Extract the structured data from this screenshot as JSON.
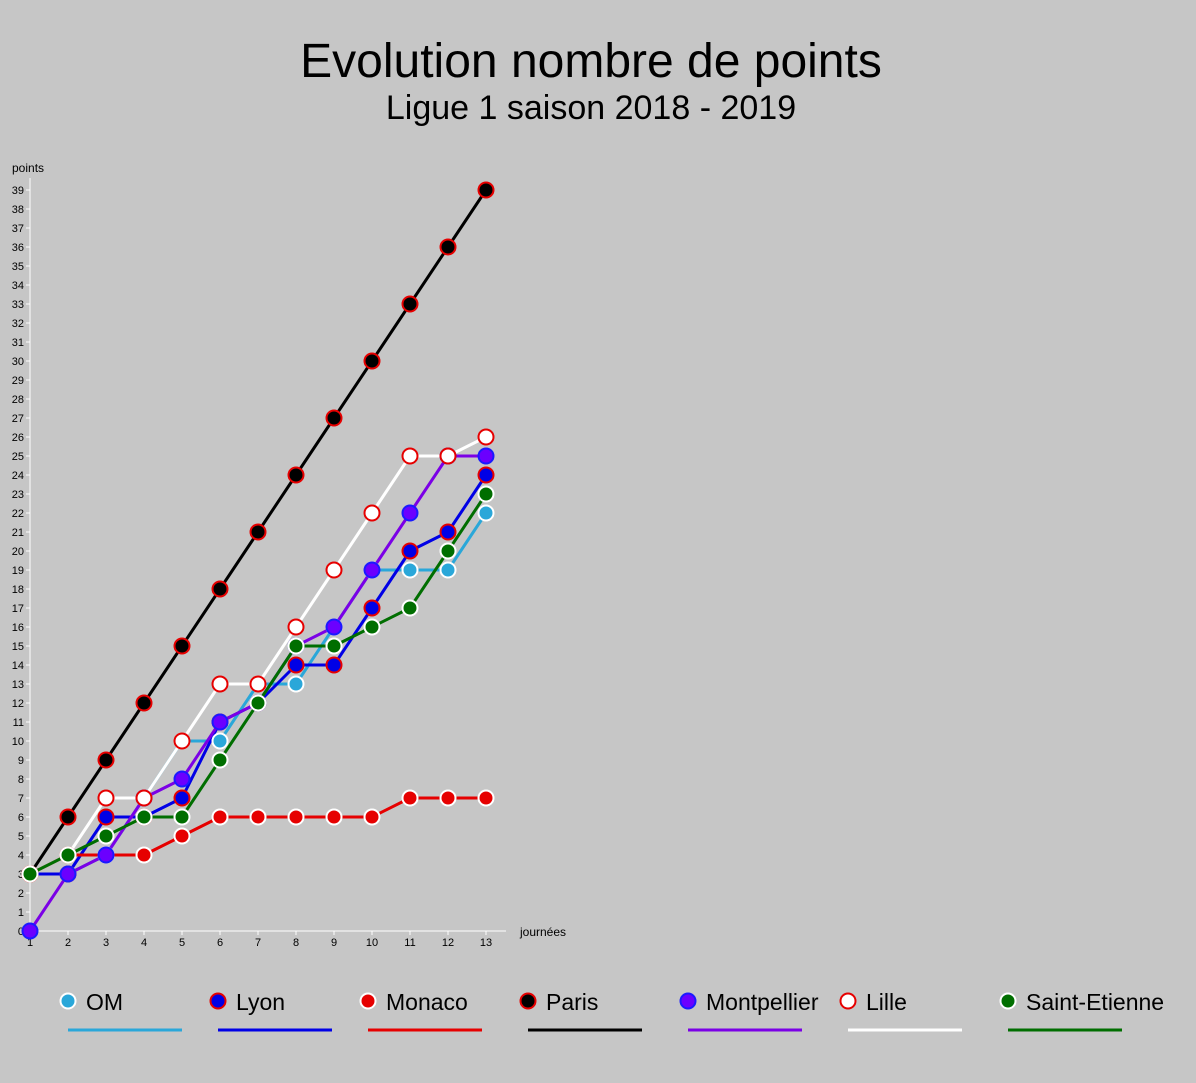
{
  "chart_data": {
    "type": "line",
    "title": "Evolution nombre de points",
    "subtitle": "Ligue 1 saison 2018 - 2019",
    "xlabel": "journées",
    "ylabel": "points",
    "x": [
      1,
      2,
      3,
      4,
      5,
      6,
      7,
      8,
      9,
      10,
      11,
      12,
      13
    ],
    "xlim": [
      1,
      13
    ],
    "ylim": [
      0,
      39
    ],
    "grid": false,
    "legend_position": "bottom",
    "series": [
      {
        "name": "OM",
        "line_color": "#2aa7d9",
        "marker_fill": "#2aa7d9",
        "marker_edge": "#ffffff",
        "values": [
          3,
          3,
          4,
          7,
          10,
          10,
          13,
          13,
          16,
          19,
          19,
          19,
          22
        ]
      },
      {
        "name": "Lyon",
        "line_color": "#0000e6",
        "marker_fill": "#0000e6",
        "marker_edge": "#e60000",
        "values": [
          3,
          3,
          6,
          6,
          7,
          11,
          12,
          14,
          14,
          17,
          20,
          21,
          24
        ]
      },
      {
        "name": "Monaco",
        "line_color": "#e60000",
        "marker_fill": "#e60000",
        "marker_edge": "#ffffff",
        "values": [
          3,
          4,
          4,
          4,
          5,
          6,
          6,
          6,
          6,
          6,
          7,
          7,
          7
        ]
      },
      {
        "name": "Paris",
        "line_color": "#000000",
        "marker_fill": "#000000",
        "marker_edge": "#e60000",
        "values": [
          3,
          6,
          9,
          12,
          15,
          18,
          21,
          24,
          27,
          30,
          33,
          36,
          39
        ]
      },
      {
        "name": "Montpellier",
        "line_color": "#7b00e6",
        "marker_fill": "#6b00ff",
        "marker_edge": "#1a1aff",
        "values": [
          0,
          3,
          4,
          7,
          8,
          11,
          12,
          15,
          16,
          19,
          22,
          25,
          25
        ]
      },
      {
        "name": "Lille",
        "line_color": "#ffffff",
        "marker_fill": "#ffffff",
        "marker_edge": "#e60000",
        "values": [
          3,
          4,
          7,
          7,
          10,
          13,
          13,
          16,
          19,
          22,
          25,
          25,
          26
        ]
      },
      {
        "name": "Saint-Etienne",
        "line_color": "#006e00",
        "marker_fill": "#006e00",
        "marker_edge": "#ffffff",
        "values": [
          3,
          4,
          5,
          6,
          6,
          9,
          12,
          15,
          15,
          16,
          17,
          20,
          23
        ]
      }
    ]
  }
}
